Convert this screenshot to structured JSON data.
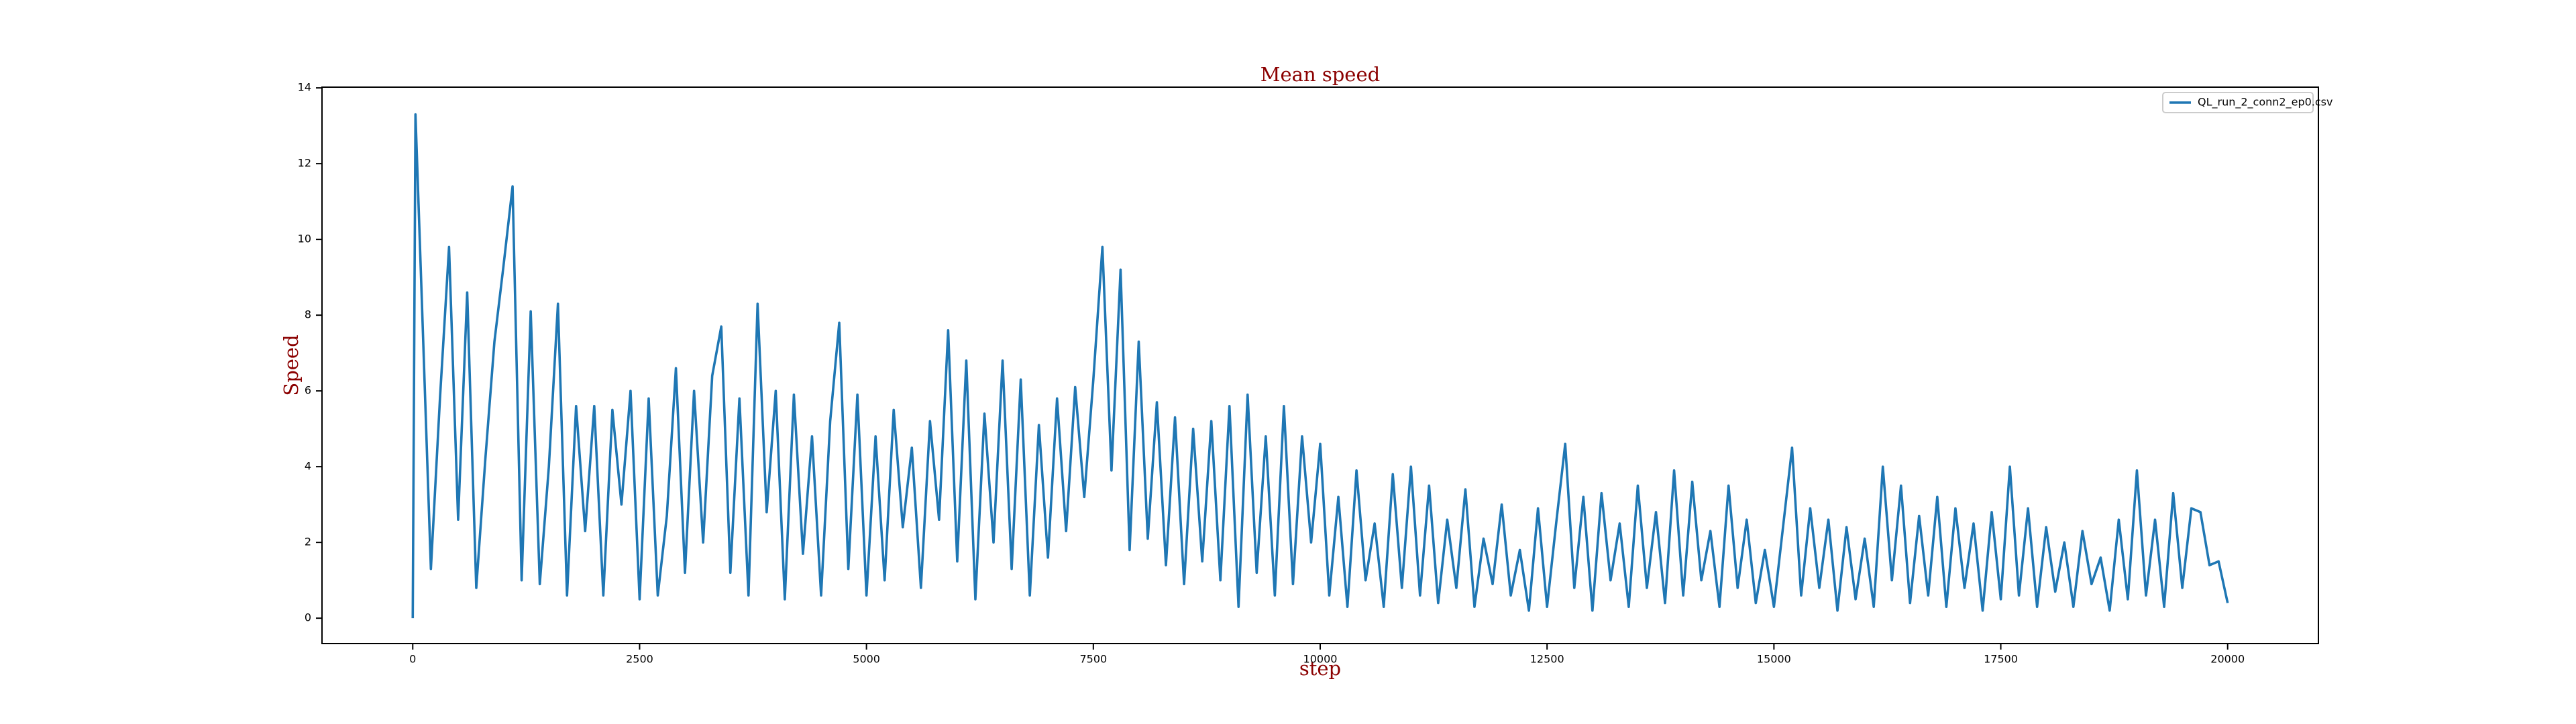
{
  "chart_data": {
    "type": "line",
    "title": "Mean speed",
    "x_label": "step",
    "y_label": "Speed",
    "xlim": [
      -1000,
      21000
    ],
    "ylim": [
      -0.67,
      14.02
    ],
    "xticks": [
      0,
      2500,
      5000,
      7500,
      10000,
      12500,
      15000,
      17500,
      20000
    ],
    "yticks": [
      0,
      2,
      4,
      6,
      8,
      10,
      12,
      14
    ],
    "legend": "upper right",
    "x": [
      0,
      30,
      100,
      200,
      300,
      400,
      500,
      600,
      700,
      800,
      900,
      1000,
      1100,
      1200,
      1300,
      1400,
      1500,
      1600,
      1700,
      1800,
      1900,
      2000,
      2100,
      2200,
      2300,
      2400,
      2500,
      2600,
      2700,
      2800,
      2900,
      3000,
      3100,
      3200,
      3300,
      3400,
      3500,
      3600,
      3700,
      3800,
      3900,
      4000,
      4100,
      4200,
      4300,
      4400,
      4500,
      4600,
      4700,
      4800,
      4900,
      5000,
      5100,
      5200,
      5300,
      5400,
      5500,
      5600,
      5700,
      5800,
      5900,
      6000,
      6100,
      6200,
      6300,
      6400,
      6500,
      6600,
      6700,
      6800,
      6900,
      7000,
      7100,
      7200,
      7300,
      7400,
      7500,
      7600,
      7700,
      7800,
      7900,
      8000,
      8100,
      8200,
      8300,
      8400,
      8500,
      8600,
      8700,
      8800,
      8900,
      9000,
      9100,
      9200,
      9300,
      9400,
      9500,
      9600,
      9700,
      9800,
      9900,
      10000,
      10100,
      10200,
      10300,
      10400,
      10500,
      10600,
      10700,
      10800,
      10900,
      11000,
      11100,
      11200,
      11300,
      11400,
      11500,
      11600,
      11700,
      11800,
      11900,
      12000,
      12100,
      12200,
      12300,
      12400,
      12500,
      12600,
      12700,
      12800,
      12900,
      13000,
      13100,
      13200,
      13300,
      13400,
      13500,
      13600,
      13700,
      13800,
      13900,
      14000,
      14100,
      14200,
      14300,
      14400,
      14500,
      14600,
      14700,
      14800,
      14900,
      15000,
      15100,
      15200,
      15300,
      15400,
      15500,
      15600,
      15700,
      15800,
      15900,
      16000,
      16100,
      16200,
      16300,
      16400,
      16500,
      16600,
      16700,
      16800,
      16900,
      17000,
      17100,
      17200,
      17300,
      17400,
      17500,
      17600,
      17700,
      17800,
      17900,
      18000,
      18100,
      18200,
      18300,
      18400,
      18500,
      18600,
      18700,
      18800,
      18900,
      19000,
      19100,
      19200,
      19300,
      19400,
      19500,
      19600,
      19700,
      19800,
      19900,
      20000
    ],
    "series": [
      {
        "name": "QL_run_2_conn2_ep0.csv",
        "color": "#1f77b4",
        "values": [
          0,
          13.3,
          8.4,
          1.3,
          5.8,
          9.8,
          2.6,
          8.6,
          0.8,
          4.2,
          7.3,
          9.3,
          11.4,
          1.0,
          8.1,
          0.9,
          4.0,
          8.3,
          0.6,
          5.6,
          2.3,
          5.6,
          0.6,
          5.5,
          3.0,
          6.0,
          0.5,
          5.8,
          0.6,
          2.7,
          6.6,
          1.2,
          6.0,
          2.0,
          6.4,
          7.7,
          1.2,
          5.8,
          0.6,
          8.3,
          2.8,
          6.0,
          0.5,
          5.9,
          1.7,
          4.8,
          0.6,
          5.2,
          7.8,
          1.3,
          5.9,
          0.6,
          4.8,
          1.0,
          5.5,
          2.4,
          4.5,
          0.8,
          5.2,
          2.6,
          7.6,
          1.5,
          6.8,
          0.5,
          5.4,
          2.0,
          6.8,
          1.3,
          6.3,
          0.6,
          5.1,
          1.6,
          5.8,
          2.3,
          6.1,
          3.2,
          6.3,
          9.8,
          3.9,
          9.2,
          1.8,
          7.3,
          2.1,
          5.7,
          1.4,
          5.3,
          0.9,
          5.0,
          1.5,
          5.2,
          1.0,
          5.6,
          0.3,
          5.9,
          1.2,
          4.8,
          0.6,
          5.6,
          0.9,
          4.8,
          2.0,
          4.6,
          0.6,
          3.2,
          0.3,
          3.9,
          1.0,
          2.5,
          0.3,
          3.8,
          0.8,
          4.0,
          0.6,
          3.5,
          0.4,
          2.6,
          0.8,
          3.4,
          0.3,
          2.1,
          0.9,
          3.0,
          0.6,
          1.8,
          0.2,
          2.9,
          0.3,
          2.5,
          4.6,
          0.8,
          3.2,
          0.2,
          3.3,
          1.0,
          2.5,
          0.3,
          3.5,
          0.8,
          2.8,
          0.4,
          3.9,
          0.6,
          3.6,
          1.0,
          2.3,
          0.3,
          3.5,
          0.8,
          2.6,
          0.4,
          1.8,
          0.3,
          2.4,
          4.5,
          0.6,
          2.9,
          0.8,
          2.6,
          0.2,
          2.4,
          0.5,
          2.1,
          0.3,
          4.0,
          1.0,
          3.5,
          0.4,
          2.7,
          0.6,
          3.2,
          0.3,
          2.9,
          0.8,
          2.5,
          0.2,
          2.8,
          0.5,
          4.0,
          0.6,
          2.9,
          0.3,
          2.4,
          0.7,
          2.0,
          0.3,
          2.3,
          0.9,
          1.6,
          0.2,
          2.6,
          0.5,
          3.9,
          0.6,
          2.6,
          0.3,
          3.3,
          0.8,
          2.9,
          2.8,
          1.4,
          1.5,
          0.4
        ]
      }
    ]
  }
}
